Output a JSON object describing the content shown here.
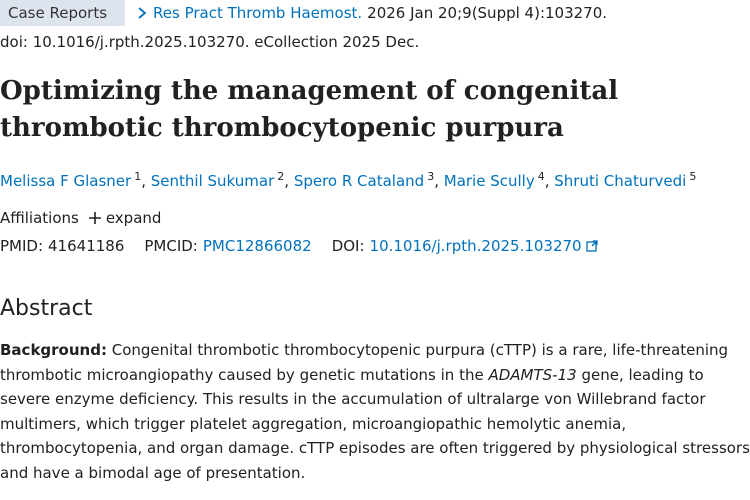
{
  "header": {
    "publication_type": "Case Reports",
    "journal": "Res Pract Thromb Haemost.",
    "citation": "2026 Jan 20;9(Suppl 4):103270.",
    "doi_line": "doi: 10.1016/j.rpth.2025.103270. eCollection 2025 Dec."
  },
  "title": "Optimizing the management of congenital thrombotic thrombocytopenic purpura",
  "authors": [
    {
      "name": "Melissa F Glasner",
      "affiliation": "1"
    },
    {
      "name": "Senthil Sukumar",
      "affiliation": "2"
    },
    {
      "name": "Spero R Cataland",
      "affiliation": "3"
    },
    {
      "name": "Marie Scully",
      "affiliation": "4"
    },
    {
      "name": "Shruti Chaturvedi",
      "affiliation": "5"
    }
  ],
  "author_separator": ",",
  "affiliations": {
    "label": "Affiliations",
    "toggle": "expand"
  },
  "identifiers": [
    {
      "label": "PMID:",
      "value": "41641186"
    },
    {
      "label": "PMCID:",
      "value": "PMC12866082"
    },
    {
      "label": "DOI:",
      "value": "10.1016/j.rpth.2025.103270"
    }
  ],
  "abstract": {
    "heading": "Abstract",
    "section_label": "Background:",
    "text_before": "Congenital thrombotic thrombocytopenic purpura (cTTP) is a rare, life-threatening thrombotic microangiopathy caused by genetic mutations in the",
    "gene": "ADAMTS-13",
    "text_after": "gene, leading to severe enzyme deficiency. This results in the accumulation of ultralarge von Willebrand factor multimers, which trigger platelet aggregation, microangiopathic hemolytic anemia, thrombocytopenia, and organ damage. cTTP episodes are often triggered by physiological stressors and have a bimodal age of presentation."
  }
}
